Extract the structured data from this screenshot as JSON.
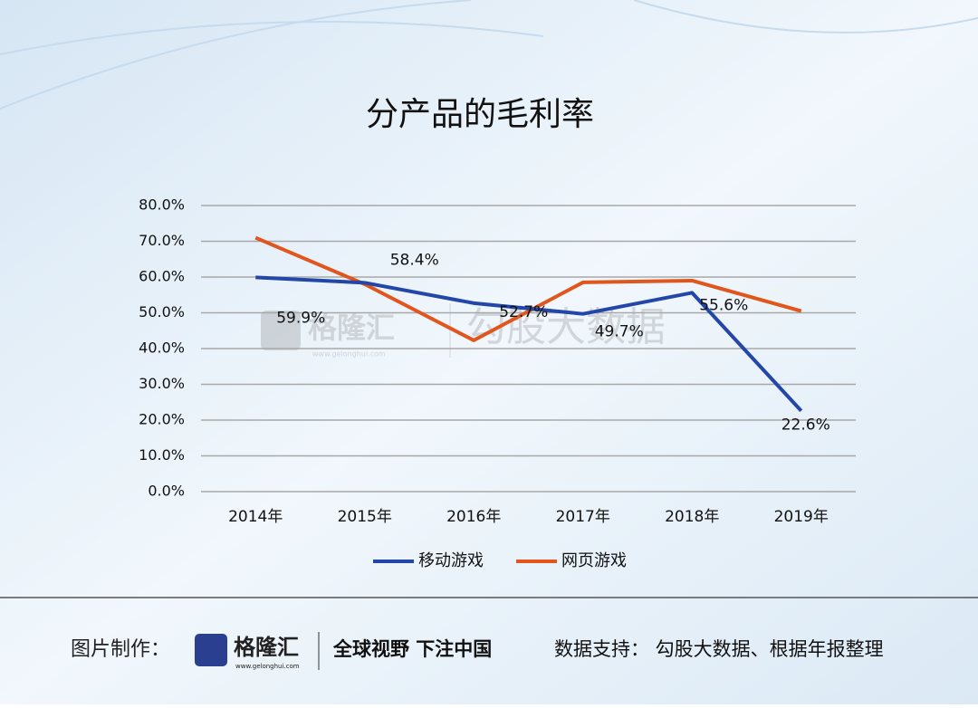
{
  "chart_data": {
    "type": "line",
    "title": "分产品的毛利率",
    "categories": [
      "2014年",
      "2015年",
      "2016年",
      "2017年",
      "2018年",
      "2019年"
    ],
    "series": [
      {
        "name": "移动游戏",
        "color": "#2347a8",
        "values": [
          59.9,
          58.4,
          52.7,
          49.7,
          55.6,
          22.6
        ],
        "value_labels": [
          "59.9%",
          "58.4%",
          "52.7%",
          "49.7%",
          "55.6%",
          "22.6%"
        ]
      },
      {
        "name": "网页游戏",
        "color": "#e0561c",
        "values": [
          71,
          58,
          42.3,
          58.5,
          59,
          50.5
        ]
      }
    ],
    "ylim": [
      0,
      80
    ],
    "yticks": [
      {
        "value": 0,
        "label": "0.0%"
      },
      {
        "value": 10,
        "label": "10.0%"
      },
      {
        "value": 20,
        "label": "20.0%"
      },
      {
        "value": 30,
        "label": "30.0%"
      },
      {
        "value": 40,
        "label": "40.0%"
      },
      {
        "value": 50,
        "label": "50.0%"
      },
      {
        "value": 60,
        "label": "60.0%"
      },
      {
        "value": 70,
        "label": "70.0%"
      },
      {
        "value": 80,
        "label": "80.0%"
      }
    ],
    "grid": true
  },
  "watermark": {
    "brand": "格隆汇",
    "site": "www.gelonghui.com",
    "partner": "勾股大数据"
  },
  "footer": {
    "made_by": "图片制作：",
    "brand": "格隆汇",
    "site": "www.gelonghui.com",
    "slogan": "全球视野 下注中国",
    "source": "数据支持：  勾股大数据、根据年报整理"
  }
}
